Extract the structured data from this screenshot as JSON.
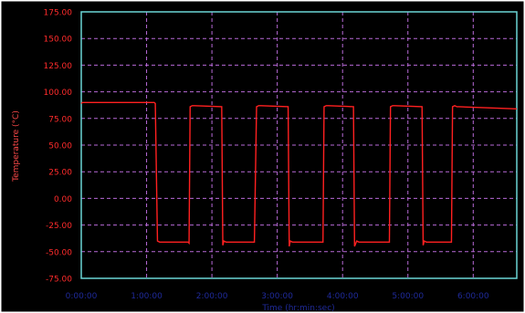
{
  "chart_data": {
    "type": "line",
    "xlabel": "Time (hr:min:sec)",
    "ylabel": "Temperature (°C)",
    "xlim": [
      0,
      400
    ],
    "ylim": [
      -75,
      175
    ],
    "x_ticks": [
      {
        "value": 0,
        "label": "0:00:00"
      },
      {
        "value": 60,
        "label": "1:00:00"
      },
      {
        "value": 120,
        "label": "2:00:00"
      },
      {
        "value": 180,
        "label": "3:00:00"
      },
      {
        "value": 240,
        "label": "4:00:00"
      },
      {
        "value": 300,
        "label": "5:00:00"
      },
      {
        "value": 360,
        "label": "6:00:00"
      }
    ],
    "y_ticks": [
      {
        "value": 175,
        "label": "175.00"
      },
      {
        "value": 150,
        "label": "150.00"
      },
      {
        "value": 125,
        "label": "125.00"
      },
      {
        "value": 100,
        "label": "100.00"
      },
      {
        "value": 75,
        "label": "75.00"
      },
      {
        "value": 50,
        "label": "50.00"
      },
      {
        "value": 25,
        "label": "25.00"
      },
      {
        "value": 0,
        "label": "0.00"
      },
      {
        "value": -25,
        "label": "-25.00"
      },
      {
        "value": -50,
        "label": "-50.00"
      },
      {
        "value": -75,
        "label": "-75.00"
      }
    ],
    "grid": true,
    "series": [
      {
        "x": [
          0,
          1,
          67,
          68,
          70,
          72,
          98,
          99,
          100,
          102,
          104,
          129,
          130,
          131,
          133,
          135,
          158,
          159,
          161,
          163,
          165,
          190,
          191,
          192,
          194,
          196,
          221,
          222,
          223,
          225,
          227,
          250,
          251,
          253,
          255,
          257,
          282,
          283,
          284,
          286,
          288,
          313,
          314,
          315,
          317,
          319,
          340,
          341,
          343,
          345,
          347,
          400
        ],
        "y": [
          89,
          90,
          90,
          89,
          -40,
          -41,
          -41,
          -42,
          86,
          87,
          87,
          86,
          -44,
          -40,
          -41,
          -41,
          -41,
          -41,
          86,
          87,
          87,
          86,
          -45,
          -40,
          -41,
          -41,
          -41,
          -41,
          86,
          87,
          87,
          86,
          -45,
          -40,
          -41,
          -41,
          -41,
          -41,
          86,
          87,
          87,
          86,
          -44,
          -40,
          -41,
          -41,
          -41,
          86,
          87,
          86,
          86,
          84
        ]
      }
    ],
    "colors": {
      "background": "#000000",
      "frame": "#ffffff",
      "plot_border": "#6ad6d6",
      "grid": "#b86ad8",
      "series": "#ff2020",
      "y_tick_text": "#ff2b2b",
      "x_tick_text": "#1f2a9a",
      "x_axis_title": "#1f2a9a",
      "y_axis_title": "#ff4a4a"
    }
  }
}
